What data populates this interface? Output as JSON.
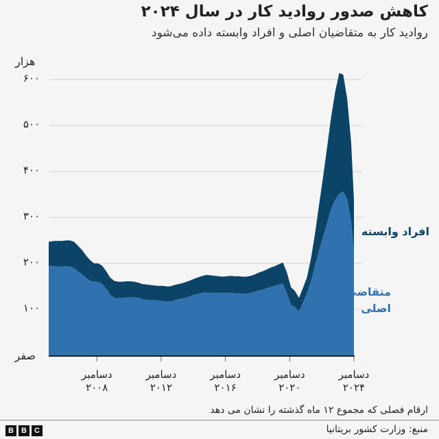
{
  "header": {
    "title": "کاهش صدور روادید کار در سال ۲۰۲۴",
    "subtitle": "روادید کار به متقاضیان اصلی و افراد وابسته داده می‌شود"
  },
  "axis": {
    "unit": "هزار",
    "y_ticks": [
      {
        "value": 0,
        "label": "صفر"
      },
      {
        "value": 100,
        "label": "۱۰۰"
      },
      {
        "value": 200,
        "label": "۲۰۰"
      },
      {
        "value": 300,
        "label": "۳۰۰"
      },
      {
        "value": 400,
        "label": "۴۰۰"
      },
      {
        "value": 500,
        "label": "۵۰۰"
      },
      {
        "value": 600,
        "label": "۶۰۰"
      }
    ],
    "x_ticks": [
      {
        "x": 2008.92,
        "line1": "دسامبر",
        "line2": "۲۰۰۸"
      },
      {
        "x": 2012.92,
        "line1": "دسامبر",
        "line2": "۲۰۱۲"
      },
      {
        "x": 2016.92,
        "line1": "دسامبر",
        "line2": "۲۰۱۶"
      },
      {
        "x": 2020.92,
        "line1": "دسامبر",
        "line2": "۲۰۲۰"
      },
      {
        "x": 2024.92,
        "line1": "دسامبر",
        "line2": "۲۰۲۴"
      }
    ]
  },
  "legend": {
    "dependants": "افراد وابسته",
    "main_line1": "متقاضی",
    "main_line2": "اصلی"
  },
  "footer": {
    "note": "ارقام فصلی که مجموع ۱۲ ماه گذشته را نشان می دهد",
    "source": "منبع: وزارت کشور بریتانیا",
    "logo": [
      "B",
      "B",
      "C"
    ]
  },
  "colors": {
    "main": "#3072b0",
    "dependants": "#0b4466",
    "grid": "#d9d9d9",
    "baseline": "#222222",
    "background": "#f5f5f5"
  },
  "chart_data": {
    "type": "area",
    "stacked": true,
    "title": "کاهش صدور روادید کار در سال ۲۰۲۴",
    "subtitle": "روادید کار به متقاضیان اصلی و افراد وابسته داده می‌شود",
    "xlabel": "",
    "ylabel": "هزار",
    "ylim": [
      0,
      620
    ],
    "grid": true,
    "legend_position": "right-inline",
    "x": [
      2005.92,
      2006.25,
      2006.5,
      2006.75,
      2007.0,
      2007.25,
      2007.5,
      2007.75,
      2008.0,
      2008.25,
      2008.5,
      2008.75,
      2009.0,
      2009.25,
      2009.5,
      2009.75,
      2010.0,
      2010.25,
      2010.5,
      2010.75,
      2011.0,
      2011.25,
      2011.5,
      2011.75,
      2012.0,
      2012.25,
      2012.5,
      2012.75,
      2013.0,
      2013.25,
      2013.5,
      2013.75,
      2014.0,
      2014.25,
      2014.5,
      2014.75,
      2015.0,
      2015.25,
      2015.5,
      2015.75,
      2016.0,
      2016.25,
      2016.5,
      2016.75,
      2017.0,
      2017.25,
      2017.5,
      2017.75,
      2018.0,
      2018.25,
      2018.5,
      2018.75,
      2019.0,
      2019.25,
      2019.5,
      2019.75,
      2020.0,
      2020.25,
      2020.5,
      2020.75,
      2021.0,
      2021.25,
      2021.5,
      2021.75,
      2022.0,
      2022.25,
      2022.5,
      2022.75,
      2023.0,
      2023.25,
      2023.5,
      2023.75,
      2024.0,
      2024.25,
      2024.5,
      2024.75,
      2024.92
    ],
    "series": [
      {
        "name": "متقاضی اصلی",
        "values": [
          195,
          194,
          193,
          193,
          194,
          193,
          190,
          182,
          176,
          168,
          162,
          160,
          160,
          155,
          145,
          132,
          125,
          124,
          125,
          126,
          126,
          126,
          125,
          122,
          121,
          120,
          120,
          119,
          118,
          117,
          117,
          120,
          122,
          124,
          126,
          129,
          132,
          134,
          136,
          137,
          136,
          136,
          136,
          136,
          136,
          136,
          135,
          135,
          134,
          134,
          136,
          138,
          141,
          143,
          146,
          149,
          151,
          154,
          156,
          135,
          110,
          105,
          95,
          115,
          135,
          162,
          195,
          228,
          258,
          288,
          318,
          338,
          352,
          356,
          340,
          290,
          225
        ]
      },
      {
        "name": "افراد وابسته",
        "values": [
          52,
          55,
          56,
          56,
          56,
          57,
          57,
          56,
          53,
          49,
          45,
          40,
          40,
          40,
          38,
          37,
          37,
          36,
          35,
          35,
          35,
          34,
          33,
          33,
          33,
          33,
          32,
          32,
          33,
          33,
          33,
          33,
          33,
          33,
          34,
          34,
          35,
          36,
          37,
          38,
          38,
          37,
          36,
          35,
          36,
          37,
          37,
          37,
          37,
          37,
          37,
          38,
          39,
          40,
          41,
          42,
          43,
          44,
          46,
          45,
          38,
          35,
          30,
          32,
          35,
          50,
          70,
          100,
          130,
          165,
          200,
          235,
          262,
          255,
          218,
          172,
          112
        ]
      }
    ],
    "totals_note": "peak ≈ 616k in late 2023; end Dec 2024 ≈ 337k total"
  }
}
